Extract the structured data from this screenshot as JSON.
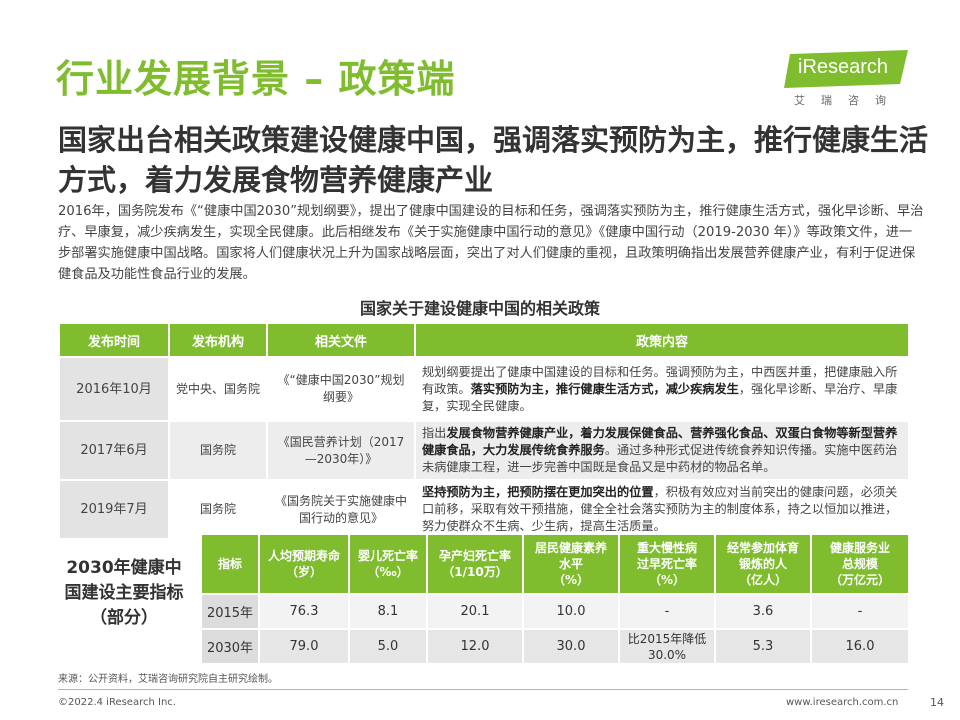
{
  "title": "行业发展背景 – 政策端",
  "logo": {
    "brand_i": "i",
    "brand_rest": "Research",
    "sub": "艾瑞咨询"
  },
  "headline": "国家出台相关政策建设健康中国，强调落实预防为主，推行健康生活方式，着力发展食物营养健康产业",
  "intro": "2016年，国务院发布《“健康中国2030”规划纲要》，提出了健康中国建设的目标和任务，强调落实预防为主，推行健康生活方式，强化早诊断、早治疗、早康复，减少疾病发生，实现全民健康。此后相继发布《关于实施健康中国行动的意见》《健康中国行动（2019-2030 年）》等政策文件，进一步部署实施健康中国战略。国家将人们健康状况上升为国家战略层面，突出了对人们健康的重视，且政策明确指出发展营养健康产业，有利于促进保健食品及功能性食品行业的发展。",
  "policy_table": {
    "caption": "国家关于建设健康中国的相关政策",
    "headers": [
      "发布时间",
      "发布机构",
      "相关文件",
      "政策内容"
    ],
    "rows": [
      {
        "date": "2016年10月",
        "org": "党中央、国务院",
        "doc": "《“健康中国2030”规划纲要》",
        "c1": "规划纲要提出了健康中国建设的目标和任务。强调预防为主，中西医并重，把健康融入所有政策。",
        "c2": "落实预防为主，推行健康生活方式，减少疾病发生",
        "c3": "，强化早诊断、早治疗、早康复，实现全民健康。"
      },
      {
        "date": "2017年6月",
        "org": "国务院",
        "doc": "《国民营养计划（2017—2030年）》",
        "c1": "指出",
        "c2": "发展食物营养健康产业，着力发展保健食品、营养强化食品、双蛋白食物等新型营养健康食品，大力发展传统食养服务",
        "c3": "。通过多种形式促进传统食养知识传播。实施中医药治未病健康工程，进一步完善中国既是食品又是中药材的物品名单。"
      },
      {
        "date": "2019年7月",
        "org": "国务院",
        "doc": "《国务院关于实施健康中国行动的意见》",
        "c1": "",
        "c2": "坚持预防为主，把预防摆在更加突出的位置",
        "c3": "，积极有效应对当前突出的健康问题，必须关口前移，采取有效干预措施，健全全社会落实预防为主的制度体系，持之以恒加以推进，努力使群众不生病、少生病，提高生活质量。"
      }
    ]
  },
  "indicator": {
    "label": "2030年健康中国建设主要指标（部分）",
    "headers": [
      [
        "指标"
      ],
      [
        "人均预期寿命",
        "（岁）"
      ],
      [
        "婴儿死亡率",
        "（‰）"
      ],
      [
        "孕产妇死亡率",
        "（1/10万）"
      ],
      [
        "居民健康素养",
        "水平",
        "（%）"
      ],
      [
        "重大慢性病",
        "过早死亡率",
        "（%）"
      ],
      [
        "经常参加体育",
        "锻炼的人",
        "（亿人）"
      ],
      [
        "健康服务业",
        "总规模",
        "（万亿元）"
      ]
    ],
    "rows": [
      {
        "year": "2015年",
        "values": [
          "76.3",
          "8.1",
          "20.1",
          "10.0",
          "-",
          "3.6",
          "-"
        ]
      },
      {
        "year": "2030年",
        "values": [
          "79.0",
          "5.0",
          "12.0",
          "30.0",
          "比2015年降低30.0%",
          "5.3",
          "16.0"
        ]
      }
    ]
  },
  "footer": {
    "source": "来源：公开资料，艾瑞咨询研究院自主研究绘制。",
    "copyright": "©2022.4 iResearch Inc.",
    "site": "www.iresearch.com.cn",
    "page": "14"
  },
  "colors": {
    "accent": "#7fbd2f"
  }
}
